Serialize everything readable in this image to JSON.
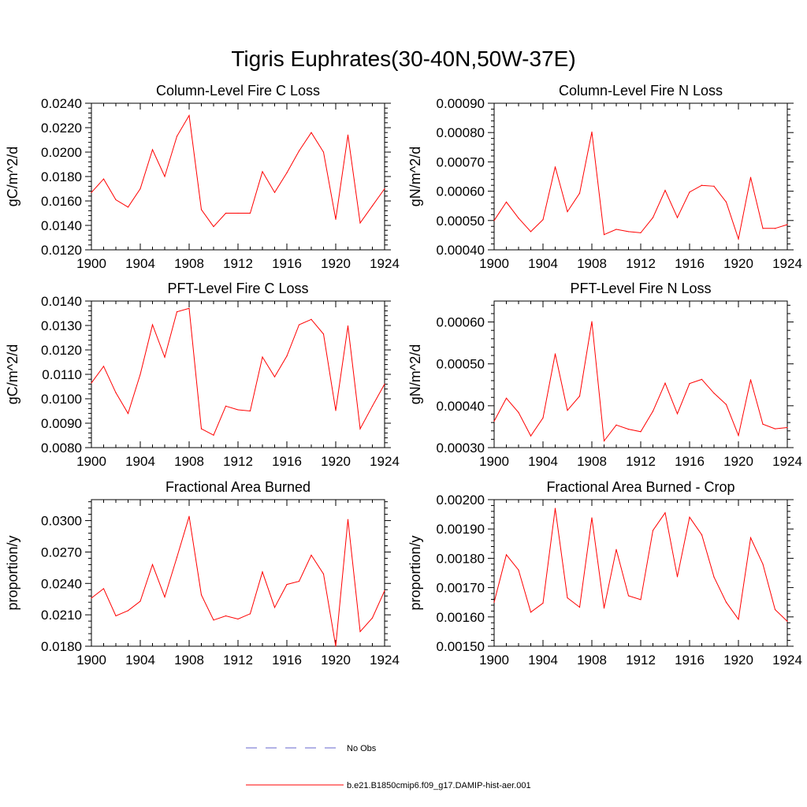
{
  "main_title": "Tigris Euphrates(30-40N,50W-37E)",
  "legend": {
    "items": [
      {
        "label": "No Obs",
        "color": "#6666cc",
        "style": "dashed"
      },
      {
        "label": "b.e21.B1850cmip6.f09_g17.DAMIP-hist-aer.001",
        "color": "#ff0000",
        "style": "solid"
      }
    ]
  },
  "chart_data": [
    {
      "type": "line",
      "title": "Column-Level Fire C Loss",
      "ylabel": "gC/m^2/d",
      "xlim": [
        1900,
        1924
      ],
      "ylim": [
        0.012,
        0.024
      ],
      "xticks": [
        "1900",
        "1904",
        "1908",
        "1912",
        "1916",
        "1920",
        "1924"
      ],
      "yticks": [
        "0.0120",
        "0.0140",
        "0.0160",
        "0.0180",
        "0.0200",
        "0.0220",
        "0.0240"
      ],
      "series": [
        {
          "color": "#ff0000",
          "x": [
            1900,
            1901,
            1902,
            1903,
            1904,
            1905,
            1906,
            1907,
            1908,
            1909,
            1910,
            1911,
            1912,
            1913,
            1914,
            1915,
            1916,
            1917,
            1918,
            1919,
            1920,
            1921,
            1922,
            1923,
            1924
          ],
          "values": [
            0.0167,
            0.0178,
            0.0161,
            0.0155,
            0.017,
            0.0202,
            0.018,
            0.0213,
            0.023,
            0.0153,
            0.0139,
            0.015,
            0.015,
            0.015,
            0.0184,
            0.0167,
            0.0183,
            0.0201,
            0.0216,
            0.02,
            0.0145,
            0.0214,
            0.0142,
            0.0156,
            0.017
          ]
        }
      ]
    },
    {
      "type": "line",
      "title": "Column-Level Fire N Loss",
      "ylabel": "gN/m^2/d",
      "xlim": [
        1900,
        1924
      ],
      "ylim": [
        0.0004,
        0.0009
      ],
      "xticks": [
        "1900",
        "1904",
        "1908",
        "1912",
        "1916",
        "1920",
        "1924"
      ],
      "yticks": [
        "0.00040",
        "0.00050",
        "0.00060",
        "0.00070",
        "0.00080",
        "0.00090"
      ],
      "series": [
        {
          "color": "#ff0000",
          "x": [
            1900,
            1901,
            1902,
            1903,
            1904,
            1905,
            1906,
            1907,
            1908,
            1909,
            1910,
            1911,
            1912,
            1913,
            1914,
            1915,
            1916,
            1917,
            1918,
            1919,
            1920,
            1921,
            1922,
            1923,
            1924
          ],
          "values": [
            0.0005,
            0.000563,
            0.000508,
            0.000462,
            0.000503,
            0.000683,
            0.00053,
            0.000593,
            0.000802,
            0.000452,
            0.00047,
            0.000462,
            0.000458,
            0.00051,
            0.000603,
            0.00051,
            0.000597,
            0.00062,
            0.000617,
            0.000563,
            0.000437,
            0.000647,
            0.000473,
            0.000473,
            0.000486
          ]
        }
      ]
    },
    {
      "type": "line",
      "title": "PFT-Level Fire C Loss",
      "ylabel": "gC/m^2/d",
      "xlim": [
        1900,
        1924
      ],
      "ylim": [
        0.008,
        0.014
      ],
      "xticks": [
        "1900",
        "1904",
        "1908",
        "1912",
        "1916",
        "1920",
        "1924"
      ],
      "yticks": [
        "0.0080",
        "0.0090",
        "0.0100",
        "0.0110",
        "0.0120",
        "0.0130",
        "0.0140"
      ],
      "series": [
        {
          "color": "#ff0000",
          "x": [
            1900,
            1901,
            1902,
            1903,
            1904,
            1905,
            1906,
            1907,
            1908,
            1909,
            1910,
            1911,
            1912,
            1913,
            1914,
            1915,
            1916,
            1917,
            1918,
            1919,
            1920,
            1921,
            1922,
            1923,
            1924
          ],
          "values": [
            0.01065,
            0.01133,
            0.01025,
            0.0094,
            0.011,
            0.01303,
            0.0117,
            0.01356,
            0.0137,
            0.00877,
            0.00851,
            0.0097,
            0.00955,
            0.0095,
            0.01171,
            0.0109,
            0.01175,
            0.01303,
            0.01325,
            0.01265,
            0.00952,
            0.01298,
            0.00877,
            0.0097,
            0.0106
          ]
        }
      ]
    },
    {
      "type": "line",
      "title": "PFT-Level Fire N Loss",
      "ylabel": "gN/m^2/d",
      "xlim": [
        1900,
        1924
      ],
      "ylim": [
        0.0003,
        0.00065
      ],
      "xticks": [
        "1900",
        "1904",
        "1908",
        "1912",
        "1916",
        "1920",
        "1924"
      ],
      "yticks": [
        "0.00030",
        "0.00040",
        "0.00050",
        "0.00060"
      ],
      "series": [
        {
          "color": "#ff0000",
          "x": [
            1900,
            1901,
            1902,
            1903,
            1904,
            1905,
            1906,
            1907,
            1908,
            1909,
            1910,
            1911,
            1912,
            1913,
            1914,
            1915,
            1916,
            1917,
            1918,
            1919,
            1920,
            1921,
            1922,
            1923,
            1924
          ],
          "values": [
            0.000363,
            0.000418,
            0.000384,
            0.000328,
            0.000371,
            0.000524,
            0.000389,
            0.000423,
            0.000601,
            0.000316,
            0.000354,
            0.000344,
            0.000338,
            0.000387,
            0.000454,
            0.000381,
            0.000453,
            0.000463,
            0.00043,
            0.000403,
            0.000329,
            0.000462,
            0.000356,
            0.000345,
            0.000348
          ]
        }
      ]
    },
    {
      "type": "line",
      "title": "Fractional Area Burned",
      "ylabel": "proportion/y",
      "xlim": [
        1900,
        1924
      ],
      "ylim": [
        0.018,
        0.032
      ],
      "xticks": [
        "1900",
        "1904",
        "1908",
        "1912",
        "1916",
        "1920",
        "1924"
      ],
      "yticks": [
        "0.0180",
        "0.0210",
        "0.0240",
        "0.0270",
        "0.0300"
      ],
      "series": [
        {
          "color": "#ff0000",
          "x": [
            1900,
            1901,
            1902,
            1903,
            1904,
            1905,
            1906,
            1907,
            1908,
            1909,
            1910,
            1911,
            1912,
            1913,
            1914,
            1915,
            1916,
            1917,
            1918,
            1919,
            1920,
            1921,
            1922,
            1923,
            1924
          ],
          "values": [
            0.0226,
            0.0235,
            0.0209,
            0.0214,
            0.0223,
            0.0258,
            0.0227,
            0.0265,
            0.0304,
            0.0229,
            0.0205,
            0.0209,
            0.0206,
            0.0211,
            0.0251,
            0.0217,
            0.0239,
            0.0242,
            0.0267,
            0.0249,
            0.018,
            0.0301,
            0.0194,
            0.0207,
            0.0233
          ]
        }
      ]
    },
    {
      "type": "line",
      "title": "Fractional Area Burned - Crop",
      "ylabel": "proportion/y",
      "xlim": [
        1900,
        1924
      ],
      "ylim": [
        0.0015,
        0.002
      ],
      "xticks": [
        "1900",
        "1904",
        "1908",
        "1912",
        "1916",
        "1920",
        "1924"
      ],
      "yticks": [
        "0.00150",
        "0.00160",
        "0.00170",
        "0.00180",
        "0.00190",
        "0.00200"
      ],
      "series": [
        {
          "color": "#ff0000",
          "x": [
            1900,
            1901,
            1902,
            1903,
            1904,
            1905,
            1906,
            1907,
            1908,
            1909,
            1910,
            1911,
            1912,
            1913,
            1914,
            1915,
            1916,
            1917,
            1918,
            1919,
            1920,
            1921,
            1922,
            1923,
            1924
          ],
          "values": [
            0.00165,
            0.001812,
            0.00176,
            0.001616,
            0.001647,
            0.00197,
            0.001665,
            0.001633,
            0.001938,
            0.00163,
            0.00183,
            0.001672,
            0.001659,
            0.001895,
            0.001955,
            0.001737,
            0.00194,
            0.00188,
            0.001736,
            0.00165,
            0.001592,
            0.00187,
            0.00178,
            0.001625,
            0.001585
          ]
        }
      ]
    }
  ]
}
